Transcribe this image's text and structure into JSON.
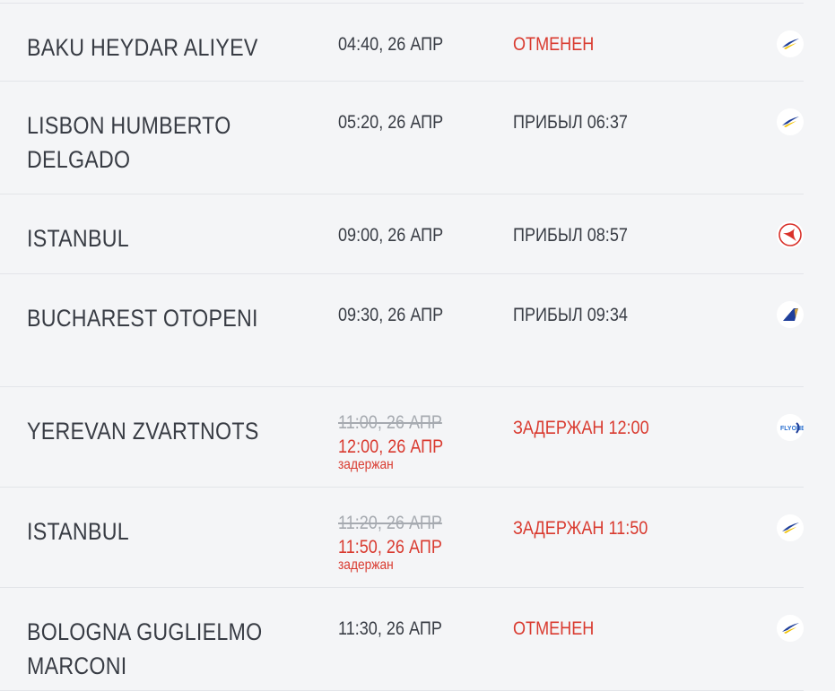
{
  "colors": {
    "delayed": "#d93a2f",
    "text": "#383c44",
    "old_time": "#a6aab0"
  },
  "flights": [
    {
      "city": "BAKU HEYDAR ALIYEV",
      "time": "04:40, 26 АПР",
      "status": "ОТМЕНЕН",
      "status_type": "cancelled",
      "airline_icon": "wing-logo-icon"
    },
    {
      "city": "LISBON HUMBERTO DELGADO",
      "time": "05:20, 26 АПР",
      "status": "ПРИБЫЛ 06:37",
      "status_type": "arrived",
      "airline_icon": "wing-logo-icon"
    },
    {
      "city": "ISTANBUL",
      "time": "09:00, 26 АПР",
      "status": "ПРИБЫЛ 08:57",
      "status_type": "arrived",
      "airline_icon": "turkish-airlines-logo-icon"
    },
    {
      "city": "BUCHAREST OTOPENI",
      "time": "09:30, 26 АПР",
      "status": "ПРИБЫЛ 09:34",
      "status_type": "arrived",
      "airline_icon": "tail-logo-icon"
    },
    {
      "city": "YEREVAN ZVARTNOTS",
      "old_time": "11:00, 26 АПР",
      "time": "12:00, 26 АПР",
      "note": "задержан",
      "status": "ЗАДЕРЖАН 12:00",
      "status_type": "delayed",
      "airline_icon": "flyone-logo-icon"
    },
    {
      "city": "ISTANBUL",
      "old_time": "11:20, 26 АПР",
      "time": "11:50, 26 АПР",
      "note": "задержан",
      "status": "ЗАДЕРЖАН 11:50",
      "status_type": "delayed",
      "airline_icon": "wing-logo-icon"
    },
    {
      "city": "BOLOGNA GUGLIELMO MARCONI",
      "time": "11:30, 26 АПР",
      "status": "ОТМЕНЕН",
      "status_type": "cancelled",
      "airline_icon": "wing-logo-icon"
    }
  ]
}
